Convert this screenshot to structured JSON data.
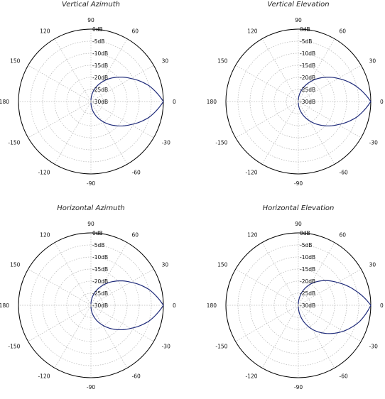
{
  "chart_data": [
    {
      "type": "polar",
      "title": "Vertical Azimuth",
      "angle_ticks": [
        "0",
        "30",
        "60",
        "90",
        "120",
        "150",
        "180",
        "-150",
        "-120",
        "-90",
        "-60",
        "-30"
      ],
      "radial_ticks": [
        "0dB",
        "-5dB",
        "-10dB",
        "-15dB",
        "-20dB",
        "-25dB",
        "-30dB"
      ],
      "rlim": [
        -30,
        0
      ],
      "grid": true,
      "series": [
        {
          "angles_deg": [
            -90,
            -75,
            -60,
            -45,
            -30,
            -15,
            0,
            15,
            30,
            45,
            60,
            75,
            90
          ],
          "values_db": [
            -29.5,
            -25.0,
            -20.6,
            -15.9,
            -10.9,
            -5.0,
            0.0,
            -5.0,
            -10.9,
            -15.9,
            -20.6,
            -25.0,
            -29.5
          ]
        }
      ]
    },
    {
      "type": "polar",
      "title": "Vertical Elevation",
      "angle_ticks": [
        "0",
        "30",
        "60",
        "90",
        "120",
        "150",
        "180",
        "-150",
        "-120",
        "-90",
        "-60",
        "-30"
      ],
      "radial_ticks": [
        "0dB",
        "-5dB",
        "-10dB",
        "-15dB",
        "-20dB",
        "-25dB",
        "-30dB"
      ],
      "rlim": [
        -30,
        0
      ],
      "grid": true,
      "series": [
        {
          "angles_deg": [
            -90,
            -75,
            -60,
            -45,
            -30,
            -15,
            0,
            15,
            30,
            45,
            60,
            75,
            90
          ],
          "values_db": [
            -29.5,
            -25.3,
            -20.8,
            -16.0,
            -10.9,
            -5.0,
            0.0,
            -5.3,
            -10.9,
            -16.0,
            -20.8,
            -25.3,
            -29.5
          ]
        }
      ]
    },
    {
      "type": "polar",
      "title": "Horizontal Azimuth",
      "angle_ticks": [
        "0",
        "30",
        "60",
        "90",
        "120",
        "150",
        "180",
        "-150",
        "-120",
        "-90",
        "-60",
        "-30"
      ],
      "radial_ticks": [
        "0dB",
        "-5dB",
        "-10dB",
        "-15dB",
        "-20dB",
        "-25dB",
        "-30dB"
      ],
      "rlim": [
        -30,
        0
      ],
      "grid": true,
      "series": [
        {
          "angles_deg": [
            -90,
            -75,
            -60,
            -45,
            -30,
            -15,
            0,
            15,
            30,
            45,
            60,
            75,
            90
          ],
          "values_db": [
            -29.5,
            -25.0,
            -20.6,
            -15.9,
            -10.9,
            -5.0,
            0.0,
            -5.0,
            -10.9,
            -15.9,
            -20.6,
            -25.0,
            -29.5
          ]
        }
      ]
    },
    {
      "type": "polar",
      "title": "Horizontal Elevation",
      "angle_ticks": [
        "0",
        "30",
        "60",
        "90",
        "120",
        "150",
        "180",
        "-150",
        "-120",
        "-90",
        "-60",
        "-30"
      ],
      "radial_ticks": [
        "0dB",
        "-5dB",
        "-10dB",
        "-15dB",
        "-20dB",
        "-25dB",
        "-30dB"
      ],
      "rlim": [
        -30,
        0
      ],
      "grid": true,
      "series": [
        {
          "angles_deg": [
            -90,
            -75,
            -60,
            -45,
            -30,
            -15,
            0,
            15,
            30,
            45,
            60,
            75,
            90
          ],
          "values_db": [
            -29.5,
            -24.0,
            -18.5,
            -13.5,
            -8.5,
            -3.8,
            0.0,
            -5.8,
            -11.2,
            -15.6,
            -19.8,
            -24.5,
            -29.5
          ]
        }
      ]
    }
  ]
}
